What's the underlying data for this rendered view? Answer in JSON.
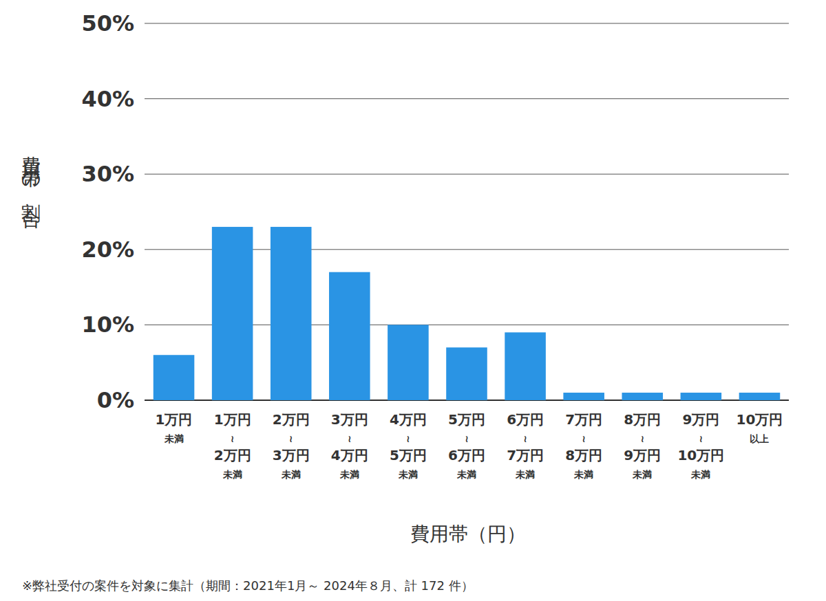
{
  "chart_data": {
    "type": "bar",
    "x_label": "費用帯（円）",
    "y_label": "費用帯の割合",
    "annotations": [
      "※弊社受付の案件を対象に集計（期間：2021年1月～ 2024年８月、計 172 件）"
    ],
    "categories": [
      "1万円\n未満",
      "1万円\n≀\n2万円\n未満",
      "2万円\n≀\n3万円\n未満",
      "3万円\n≀\n4万円\n未満",
      "4万円\n≀\n5万円\n未満",
      "5万円\n≀\n6万円\n未満",
      "6万円\n≀\n7万円\n未満",
      "7万円\n≀\n8万円\n未満",
      "8万円\n≀\n9万円\n未満",
      "9万円\n≀\n10万円\n未満",
      "10万円\n以上"
    ],
    "values": [
      6,
      23,
      23,
      17,
      10,
      7,
      9,
      1,
      1,
      1,
      1
    ],
    "color": "#2a94e4",
    "ylim": [
      0,
      50
    ],
    "yticks": [
      {
        "value": 0,
        "label": "0%"
      },
      {
        "value": 10,
        "label": "10%"
      },
      {
        "value": 20,
        "label": "20%"
      },
      {
        "value": 30,
        "label": "30%"
      },
      {
        "value": 40,
        "label": "40%"
      },
      {
        "value": 50,
        "label": "50%"
      }
    ],
    "grid": true
  }
}
